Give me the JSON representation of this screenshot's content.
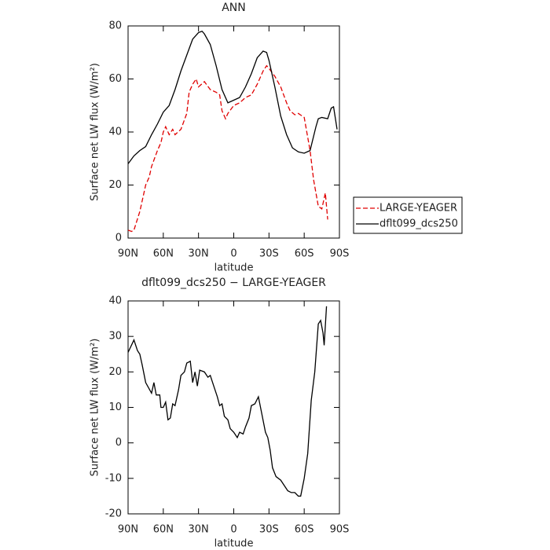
{
  "chart_data": [
    {
      "type": "line",
      "title": "ANN",
      "xlabel": "latitude",
      "ylabel": "Surface net LW flux (W/m²)",
      "xlim": [
        90,
        -90
      ],
      "ylim": [
        0,
        80
      ],
      "xticks": [
        {
          "value": 90,
          "label": "90N"
        },
        {
          "value": 60,
          "label": "60N"
        },
        {
          "value": 30,
          "label": "30N"
        },
        0,
        {
          "value": -30,
          "label": "30S"
        },
        {
          "value": -60,
          "label": "60S"
        },
        {
          "value": -90,
          "label": "90S"
        }
      ],
      "yticks": [
        0,
        20,
        40,
        60,
        80
      ],
      "legend": "outside-right",
      "series": [
        {
          "name": "LARGE-YEAGER",
          "color": "#e00000",
          "dash": true,
          "x": [
            90,
            87,
            85,
            80,
            75,
            72,
            70,
            65,
            62,
            60,
            58,
            55,
            52,
            50,
            45,
            40,
            38,
            35,
            32,
            30,
            25,
            20,
            15,
            12,
            10,
            7,
            5,
            0,
            -5,
            -10,
            -15,
            -20,
            -25,
            -28,
            -30,
            -35,
            -40,
            -45,
            -48,
            -52,
            -55,
            -60,
            -65,
            -68,
            -72,
            -75,
            -78,
            -80
          ],
          "values": [
            3,
            2.5,
            3,
            10,
            20,
            23,
            27,
            33,
            36,
            40,
            42,
            39,
            41,
            39,
            41,
            47,
            55,
            58,
            60,
            57,
            59,
            56,
            55,
            54,
            48,
            45,
            47,
            50,
            51,
            53,
            54,
            58,
            63,
            65,
            64,
            61,
            57,
            51,
            48,
            46.5,
            47,
            45.5,
            33,
            22,
            12,
            11,
            17,
            7
          ]
        },
        {
          "name": "dflt099_dcs250",
          "color": "#000000",
          "dash": false,
          "x": [
            90,
            85,
            80,
            75,
            70,
            65,
            60,
            55,
            50,
            45,
            40,
            35,
            30,
            27,
            25,
            20,
            15,
            10,
            5,
            0,
            -5,
            -10,
            -15,
            -20,
            -25,
            -28,
            -30,
            -35,
            -40,
            -45,
            -50,
            -55,
            -60,
            -65,
            -70,
            -72,
            -75,
            -80,
            -83,
            -85,
            -88
          ],
          "values": [
            28,
            31,
            33,
            34.5,
            39,
            43,
            47.5,
            50,
            56,
            63,
            69,
            75,
            77.5,
            78,
            77,
            73,
            65,
            56,
            51,
            52,
            53,
            57,
            62,
            68,
            70.5,
            70,
            67,
            57,
            46,
            39,
            34,
            32.5,
            32,
            33,
            42,
            45,
            45.5,
            45,
            49,
            49.5,
            41
          ]
        }
      ]
    },
    {
      "type": "line",
      "title": "dflt099_dcs250 − LARGE-YEAGER",
      "xlabel": "latitude",
      "ylabel": "Surface net LW flux (W/m²)",
      "xlim": [
        90,
        -90
      ],
      "ylim": [
        -20,
        40
      ],
      "xticks": [
        {
          "value": 90,
          "label": "90N"
        },
        {
          "value": 60,
          "label": "60N"
        },
        {
          "value": 30,
          "label": "30N"
        },
        0,
        {
          "value": -30,
          "label": "30S"
        },
        {
          "value": -60,
          "label": "60S"
        },
        {
          "value": -90,
          "label": "90S"
        }
      ],
      "yticks": [
        -20,
        -10,
        0,
        10,
        20,
        30,
        40
      ],
      "color": "#000000",
      "x": [
        90,
        85,
        82,
        80,
        78,
        75,
        70,
        68,
        66,
        63,
        62,
        60,
        58,
        56,
        54,
        52,
        50,
        47,
        45,
        42,
        40,
        37,
        35,
        33,
        31,
        29,
        25,
        22,
        20,
        17,
        14,
        12,
        10,
        8,
        5,
        3,
        0,
        -3,
        -5,
        -8,
        -10,
        -13,
        -15,
        -18,
        -21,
        -24,
        -27,
        -29,
        -31,
        -33,
        -36,
        -40,
        -43,
        -46,
        -49,
        -52,
        -55,
        -57,
        -60,
        -63,
        -66,
        -69,
        -72,
        -74,
        -76,
        -77,
        -79
      ],
      "values": [
        25.5,
        29,
        26,
        25,
        22,
        17,
        14,
        17,
        13.5,
        13.5,
        10,
        10,
        11.5,
        6.5,
        7,
        11,
        10.5,
        15,
        19,
        20,
        22.5,
        23,
        17,
        20,
        16,
        20.5,
        20,
        18.5,
        19,
        16,
        13,
        10.5,
        11,
        7.5,
        6.5,
        4,
        3,
        1.5,
        3,
        2.5,
        4.5,
        7,
        10.5,
        11,
        13,
        8,
        3,
        1.5,
        -2,
        -7,
        -9.5,
        -10.5,
        -12,
        -13.5,
        -14,
        -14,
        -15,
        -15,
        -10,
        -3,
        12,
        20,
        33.5,
        34.5,
        31,
        27.5,
        38.5
      ]
    }
  ]
}
